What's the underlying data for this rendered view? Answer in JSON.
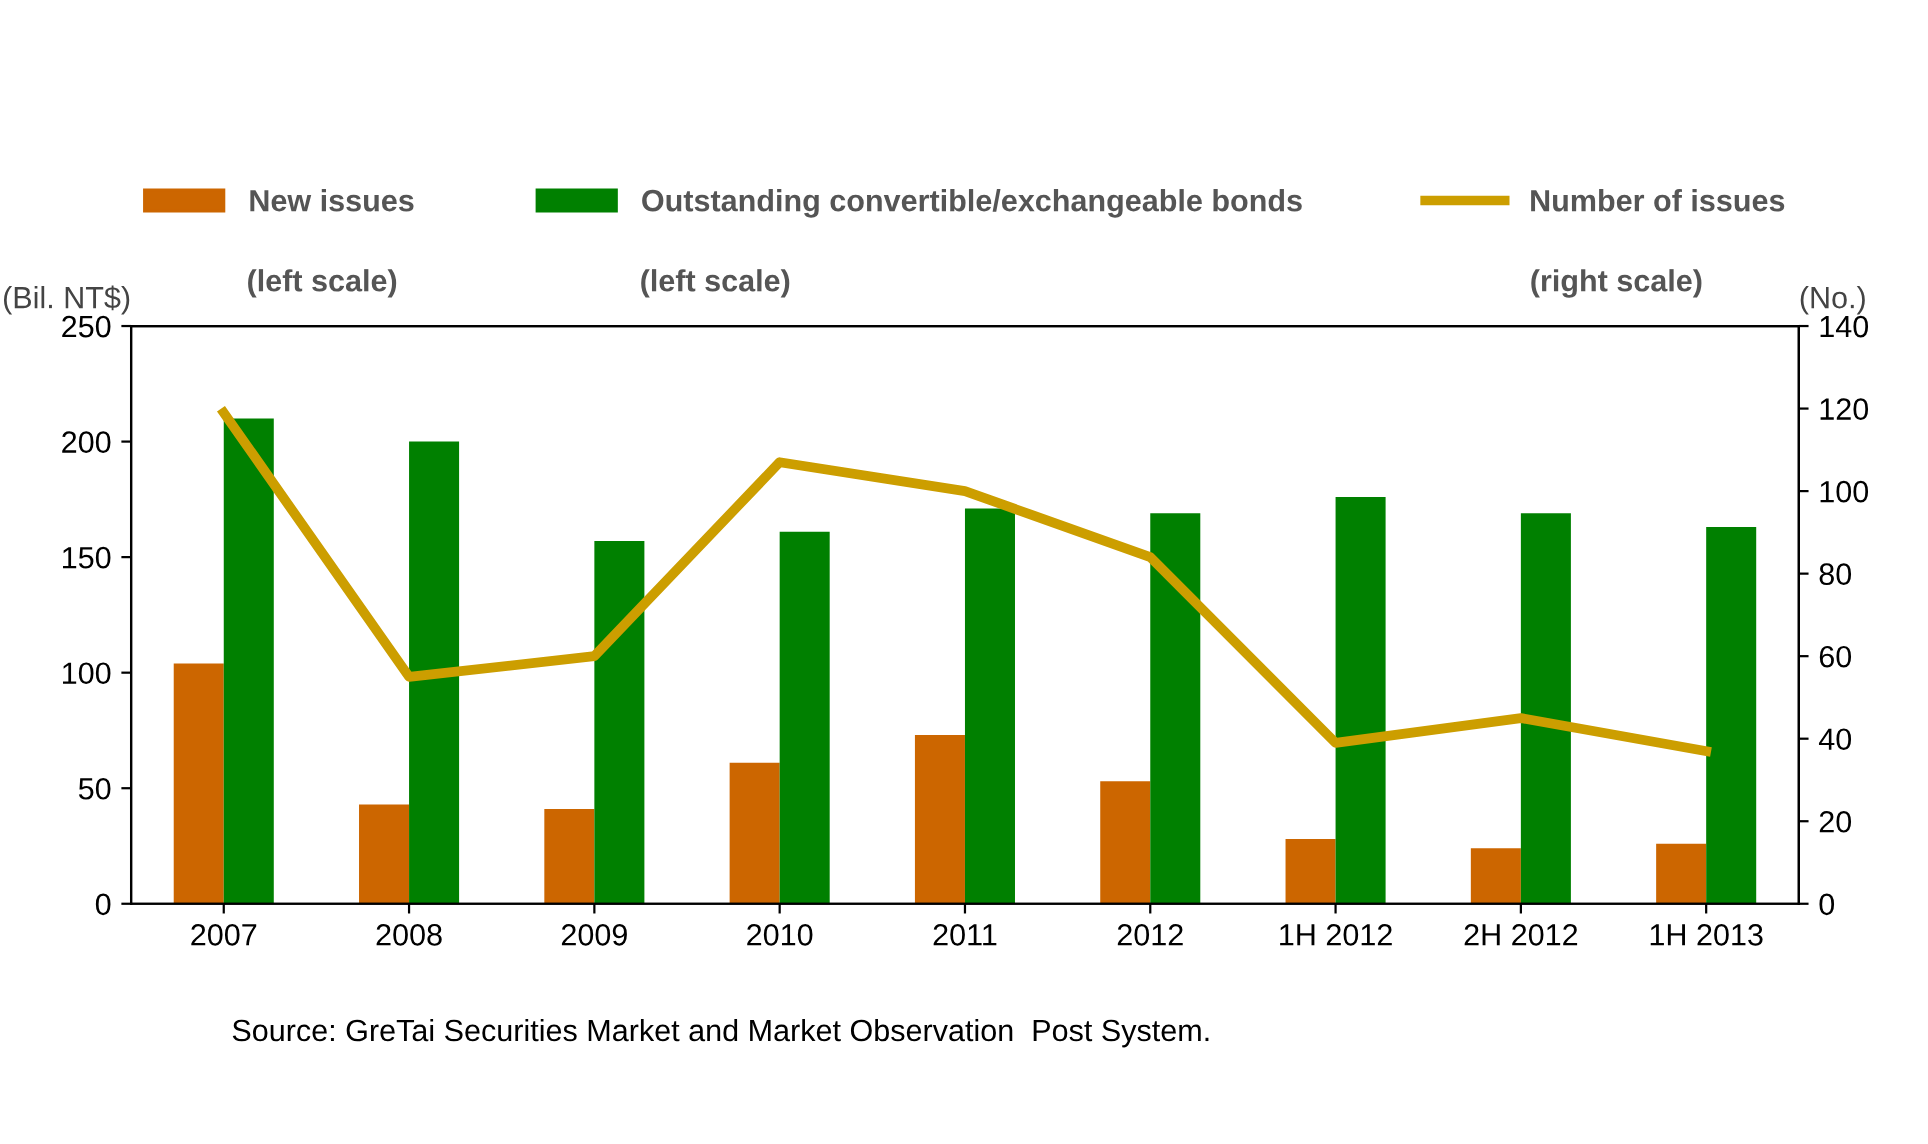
{
  "chart_data": {
    "type": "bar",
    "categories": [
      "2007",
      "2008",
      "2009",
      "2010",
      "2011",
      "2012",
      "1H 2012",
      "2H 2012",
      "1H 2013"
    ],
    "series": [
      {
        "name": "New issues",
        "color": "#cc6600",
        "values": [
          104,
          43,
          41,
          61,
          73,
          53,
          28,
          24,
          26
        ]
      },
      {
        "name": "Outstanding convertible/exchangeable bonds",
        "color": "#008000",
        "values": [
          210,
          200,
          157,
          161,
          171,
          169,
          176,
          169,
          163
        ]
      },
      {
        "name": "Number of issues",
        "color": "#cc9e00",
        "type": "line",
        "axis": "y2",
        "values": [
          119,
          55,
          60,
          107,
          100,
          84,
          39,
          45,
          37
        ]
      }
    ],
    "ylabel": "(Bil. NT$)",
    "y2label": "(No.)",
    "ylim": [
      0,
      250
    ],
    "yticks": [
      0,
      50,
      100,
      150,
      200,
      250
    ],
    "y2lim": [
      0,
      140
    ],
    "y2ticks": [
      0,
      20,
      40,
      60,
      80,
      100,
      120,
      140
    ],
    "legend": "top",
    "grid": false,
    "marker": "none",
    "line_style": "solid",
    "annotations": [
      "(left scale)",
      "(left scale)",
      "(right scale)",
      "Source: GreTai Securities Market and Market Observation  Post System."
    ]
  }
}
